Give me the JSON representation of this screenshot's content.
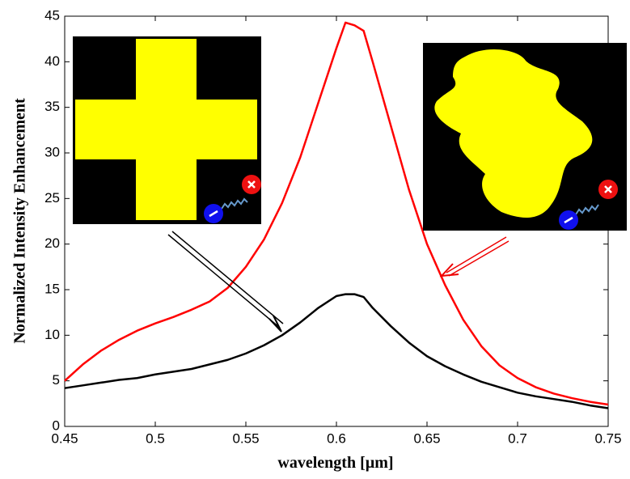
{
  "chart_data": {
    "type": "line",
    "xlabel": "wavelength [µm]",
    "ylabel": "Normalized Intensity Enhancement",
    "x": [
      0.45,
      0.46,
      0.47,
      0.48,
      0.49,
      0.5,
      0.51,
      0.52,
      0.53,
      0.54,
      0.55,
      0.56,
      0.57,
      0.58,
      0.59,
      0.6,
      0.605,
      0.61,
      0.615,
      0.62,
      0.63,
      0.64,
      0.65,
      0.66,
      0.67,
      0.68,
      0.69,
      0.7,
      0.71,
      0.72,
      0.73,
      0.74,
      0.75
    ],
    "series": [
      {
        "color": "#ff0000",
        "values": [
          5,
          6.8,
          8.3,
          9.5,
          10.5,
          11.3,
          12,
          12.8,
          13.7,
          15.2,
          17.5,
          20.5,
          24.5,
          29.5,
          35.5,
          41.5,
          44.3,
          44,
          43.4,
          40,
          33,
          26,
          20,
          15.5,
          11.7,
          8.8,
          6.7,
          5.3,
          4.3,
          3.6,
          3.1,
          2.7,
          2.4
        ]
      },
      {
        "color": "#000000",
        "values": [
          4.2,
          4.5,
          4.8,
          5.1,
          5.3,
          5.7,
          6,
          6.3,
          6.8,
          7.3,
          8,
          8.9,
          10,
          11.4,
          13,
          14.3,
          14.5,
          14.5,
          14.2,
          13,
          11,
          9.2,
          7.7,
          6.6,
          5.7,
          4.9,
          4.3,
          3.7,
          3.3,
          3,
          2.7,
          2.3,
          2
        ]
      }
    ],
    "xlim": [
      0.45,
      0.75
    ],
    "xticks": [
      0.45,
      0.5,
      0.55,
      0.6,
      0.65,
      0.7,
      0.75
    ],
    "ylim": [
      0,
      45
    ],
    "yticks": [
      0,
      5,
      10,
      15,
      20,
      25,
      30,
      35,
      40,
      45
    ]
  }
}
